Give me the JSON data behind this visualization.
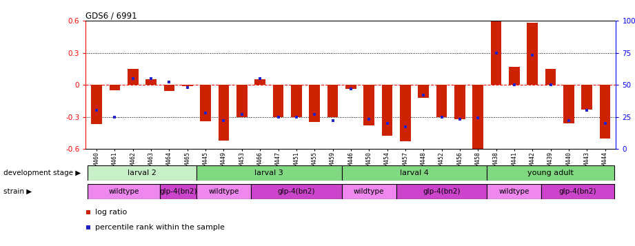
{
  "title": "GDS6 / 6991",
  "samples": [
    "GSM460",
    "GSM461",
    "GSM462",
    "GSM463",
    "GSM464",
    "GSM465",
    "GSM445",
    "GSM449",
    "GSM453",
    "GSM466",
    "GSM447",
    "GSM451",
    "GSM455",
    "GSM459",
    "GSM446",
    "GSM450",
    "GSM454",
    "GSM457",
    "GSM448",
    "GSM452",
    "GSM456",
    "GSM458",
    "GSM438",
    "GSM441",
    "GSM442",
    "GSM439",
    "GSM440",
    "GSM443",
    "GSM444"
  ],
  "log_ratio": [
    -0.37,
    -0.05,
    0.15,
    0.05,
    -0.06,
    -0.01,
    -0.34,
    -0.52,
    -0.3,
    0.05,
    -0.3,
    -0.3,
    -0.35,
    -0.3,
    -0.04,
    -0.38,
    -0.48,
    -0.53,
    -0.12,
    -0.3,
    -0.32,
    -0.6,
    0.6,
    0.17,
    0.58,
    0.15,
    -0.36,
    -0.23,
    -0.5
  ],
  "percentile": [
    30,
    25,
    55,
    55,
    52,
    48,
    28,
    22,
    27,
    55,
    25,
    25,
    27,
    22,
    47,
    23,
    20,
    17,
    42,
    25,
    23,
    24,
    75,
    50,
    73,
    50,
    22,
    30,
    20
  ],
  "bar_color": "#cc2200",
  "dot_color": "#2222cc",
  "ylim_left": [
    -0.6,
    0.6
  ],
  "ylim_right": [
    0,
    100
  ],
  "yticks_left": [
    -0.6,
    -0.3,
    0.0,
    0.3,
    0.6
  ],
  "yticks_right": [
    0,
    25,
    50,
    75,
    100
  ],
  "ytick_labels_right": [
    "0",
    "25",
    "50",
    "75",
    "100%"
  ],
  "development_stages": [
    {
      "label": "larval 2",
      "start": 0,
      "end": 6,
      "color": "#c8f0c8"
    },
    {
      "label": "larval 3",
      "start": 6,
      "end": 14,
      "color": "#80d880"
    },
    {
      "label": "larval 4",
      "start": 14,
      "end": 22,
      "color": "#80d880"
    },
    {
      "label": "young adult",
      "start": 22,
      "end": 29,
      "color": "#80d880"
    }
  ],
  "strains": [
    {
      "label": "wildtype",
      "start": 0,
      "end": 4,
      "color": "#ee88ee"
    },
    {
      "label": "glp-4(bn2)",
      "start": 4,
      "end": 6,
      "color": "#cc44cc"
    },
    {
      "label": "wildtype",
      "start": 6,
      "end": 9,
      "color": "#ee88ee"
    },
    {
      "label": "glp-4(bn2)",
      "start": 9,
      "end": 14,
      "color": "#cc44cc"
    },
    {
      "label": "wildtype",
      "start": 14,
      "end": 17,
      "color": "#ee88ee"
    },
    {
      "label": "glp-4(bn2)",
      "start": 17,
      "end": 22,
      "color": "#cc44cc"
    },
    {
      "label": "wildtype",
      "start": 22,
      "end": 25,
      "color": "#ee88ee"
    },
    {
      "label": "glp-4(bn2)",
      "start": 25,
      "end": 29,
      "color": "#cc44cc"
    }
  ]
}
